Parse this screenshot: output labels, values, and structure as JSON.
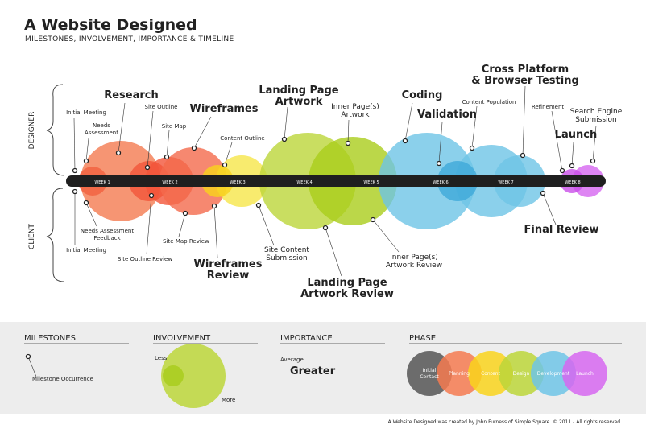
{
  "header": {
    "title": "A Website Designed",
    "subtitle": "MILESTONES, INVOLVEMENT, IMPORTANCE & TIMELINE"
  },
  "side_labels": {
    "designer": "DESIGNER",
    "client": "CLIENT"
  },
  "weeks": [
    "WEEK 1",
    "WEEK 2",
    "WEEK 3",
    "WEEK 4",
    "WEEK 5",
    "WEEK 6",
    "WEEK 7",
    "WEEK 8"
  ],
  "designer_milestones": [
    {
      "lines": [
        "Initial Meeting"
      ]
    },
    {
      "lines": [
        "Needs",
        "Assessment"
      ]
    },
    {
      "lines": [
        "Research"
      ]
    },
    {
      "lines": [
        "Site Outline"
      ]
    },
    {
      "lines": [
        "Site Map"
      ]
    },
    {
      "lines": [
        "Wireframes"
      ]
    },
    {
      "lines": [
        "Content Outline"
      ]
    },
    {
      "lines": [
        "Landing Page",
        "Artwork"
      ]
    },
    {
      "lines": [
        "Inner Page(s)",
        "Artwork"
      ]
    },
    {
      "lines": [
        "Coding"
      ]
    },
    {
      "lines": [
        "Validation"
      ]
    },
    {
      "lines": [
        "Content Population"
      ]
    },
    {
      "lines": [
        "Cross Platform",
        "& Browser Testing"
      ]
    },
    {
      "lines": [
        "Refinement"
      ]
    },
    {
      "lines": [
        "Launch"
      ]
    },
    {
      "lines": [
        "Search Engine",
        "Submission"
      ]
    }
  ],
  "client_milestones": [
    {
      "lines": [
        "Initial Meeting"
      ]
    },
    {
      "lines": [
        "Needs Assessment",
        "Feedback"
      ]
    },
    {
      "lines": [
        "Site Outline Review"
      ]
    },
    {
      "lines": [
        "Site Map Review"
      ]
    },
    {
      "lines": [
        "Wireframes",
        "Review"
      ]
    },
    {
      "lines": [
        "Site Content",
        "Submission"
      ]
    },
    {
      "lines": [
        "Landing Page",
        "Artwork Review"
      ]
    },
    {
      "lines": [
        "Inner Page(s)",
        "Artwork Review"
      ]
    },
    {
      "lines": [
        "Final Review"
      ]
    }
  ],
  "legend": {
    "milestones": {
      "heading": "MILESTONES",
      "label": "Milestone Occurrence"
    },
    "involvement": {
      "heading": "INVOLVEMENT",
      "less": "Less",
      "more": "More"
    },
    "importance": {
      "heading": "IMPORTANCE",
      "average": "Average",
      "greater": "Greater"
    },
    "phase": {
      "heading": "PHASE",
      "items": [
        {
          "lines": [
            "Initial",
            "Contact"
          ]
        },
        {
          "lines": [
            "Planning"
          ]
        },
        {
          "lines": [
            "Content"
          ]
        },
        {
          "lines": [
            "Design"
          ]
        },
        {
          "lines": [
            "Development"
          ]
        },
        {
          "lines": [
            "Launch"
          ]
        }
      ]
    }
  },
  "footer": "A Website Designed was created by John Furness of Simple Square. © 2011 - All rights reserved."
}
